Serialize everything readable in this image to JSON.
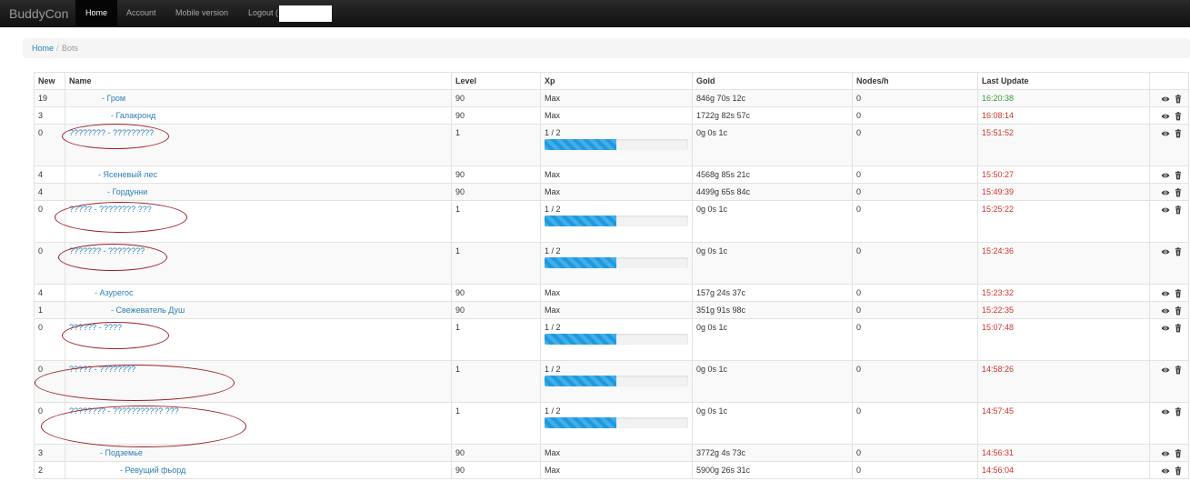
{
  "navbar": {
    "brand": "BuddyCon",
    "links": [
      {
        "label": "Home",
        "active": true
      },
      {
        "label": "Account",
        "active": false
      },
      {
        "label": "Mobile version",
        "active": false
      },
      {
        "label": "Logout (",
        "active": false
      }
    ]
  },
  "breadcrumb": {
    "home": "Home",
    "separator": "/",
    "current": "Bots"
  },
  "table": {
    "headers": [
      "New",
      "Name",
      "Level",
      "Xp",
      "Gold",
      "Nodes/h",
      "Last Update",
      ""
    ],
    "rows": [
      {
        "new": "19",
        "name": "- Гром",
        "level": "90",
        "xp": "Max",
        "progress": null,
        "gold": "846g 70s 12c",
        "nodes": "0",
        "update": "16:20:38",
        "update_color": "#3a9a3a"
      },
      {
        "new": "3",
        "name": "- Галакронд",
        "level": "90",
        "xp": "Max",
        "progress": null,
        "gold": "1722g 82s 57c",
        "nodes": "0",
        "update": "16:08:14",
        "update_color": "#d0342c"
      },
      {
        "new": "0",
        "name": "???????? - ?????????",
        "level": "1",
        "xp": "1 / 2",
        "progress": 0.5,
        "gold": "0g 0s 1c",
        "nodes": "0",
        "update": "15:51:52",
        "update_color": "#d0342c"
      },
      {
        "new": "4",
        "name": "- Ясеневый лес",
        "level": "90",
        "xp": "Max",
        "progress": null,
        "gold": "4568g 85s 21c",
        "nodes": "0",
        "update": "15:50:27",
        "update_color": "#d0342c"
      },
      {
        "new": "4",
        "name": "- Гордунни",
        "level": "90",
        "xp": "Max",
        "progress": null,
        "gold": "4499g 65s 84c",
        "nodes": "0",
        "update": "15:49:39",
        "update_color": "#d0342c"
      },
      {
        "new": "0",
        "name": "????? - ???????? ???",
        "level": "1",
        "xp": "1 / 2",
        "progress": 0.5,
        "gold": "0g 0s 1c",
        "nodes": "0",
        "update": "15:25:22",
        "update_color": "#d0342c"
      },
      {
        "new": "0",
        "name": "??????? - ????????",
        "level": "1",
        "xp": "1 / 2",
        "progress": 0.5,
        "gold": "0g 0s 1c",
        "nodes": "0",
        "update": "15:24:36",
        "update_color": "#d0342c"
      },
      {
        "new": "4",
        "name": "- Азурегос",
        "level": "90",
        "xp": "Max",
        "progress": null,
        "gold": "157g 24s 37c",
        "nodes": "0",
        "update": "15:23:32",
        "update_color": "#d0342c"
      },
      {
        "new": "1",
        "name": "- Свежеватель Душ",
        "level": "90",
        "xp": "Max",
        "progress": null,
        "gold": "351g 91s 98c",
        "nodes": "0",
        "update": "15:22:35",
        "update_color": "#d0342c"
      },
      {
        "new": "0",
        "name": "?????? - ????",
        "level": "1",
        "xp": "1 / 2",
        "progress": 0.5,
        "gold": "0g 0s 1c",
        "nodes": "0",
        "update": "15:07:48",
        "update_color": "#d0342c"
      },
      {
        "new": "0",
        "name": "????? - ????????",
        "level": "1",
        "xp": "1 / 2",
        "progress": 0.5,
        "gold": "0g 0s 1c",
        "nodes": "0",
        "update": "14:58:26",
        "update_color": "#d0342c"
      },
      {
        "new": "0",
        "name": "???????? - ??????????? ???",
        "level": "1",
        "xp": "1 / 2",
        "progress": 0.5,
        "gold": "0g 0s 1c",
        "nodes": "0",
        "update": "14:57:45",
        "update_color": "#d0342c"
      },
      {
        "new": "3",
        "name": "- Подземье",
        "level": "90",
        "xp": "Max",
        "progress": null,
        "gold": "3772g 4s 73c",
        "nodes": "0",
        "update": "14:56:31",
        "update_color": "#d0342c"
      },
      {
        "new": "2",
        "name": "- Ревущий фьорд",
        "level": "90",
        "xp": "Max",
        "progress": null,
        "gold": "5900g 26s 31c",
        "nodes": "0",
        "update": "14:56:04",
        "update_color": "#d0342c"
      }
    ]
  },
  "row_icons": [
    "eye-icon",
    "trash-icon"
  ]
}
